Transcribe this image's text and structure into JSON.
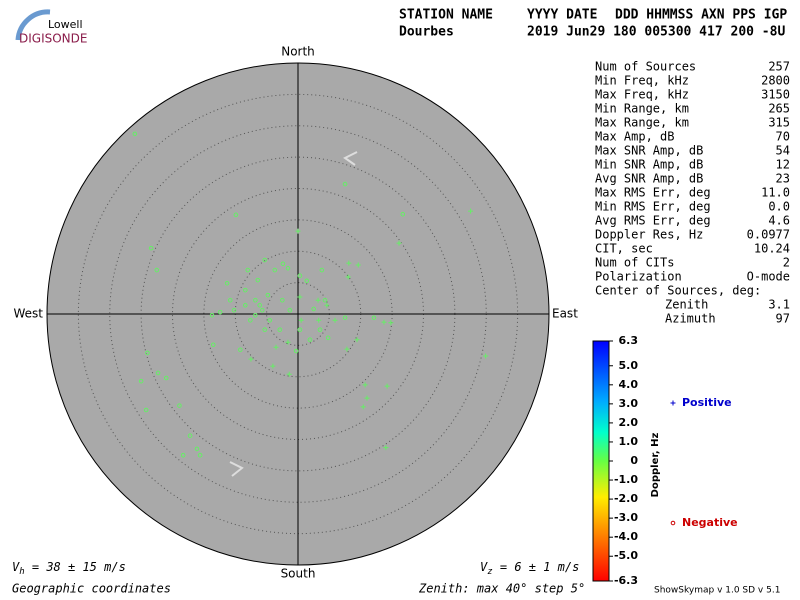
{
  "logo": {
    "line1": "Lowell",
    "line2": "DIGISONDE"
  },
  "header": {
    "columns": [
      "STATION NAME",
      "YYYY DATE",
      "DDD HHMMSS AXN PPS IGP"
    ],
    "station": "Dourbes",
    "datetime": "2019 Jun29 180 005300 417 200 -8U"
  },
  "stats": [
    [
      "Num of Sources",
      "257"
    ],
    [
      "Min Freq, kHz",
      "2800"
    ],
    [
      "Max Freq, kHz",
      "3150"
    ],
    [
      "Min Range, km",
      "265"
    ],
    [
      "Max Range, km",
      "315"
    ],
    [
      "Max Amp, dB",
      "70"
    ],
    [
      "Max SNR Amp, dB",
      "54"
    ],
    [
      "Min SNR Amp, dB",
      "12"
    ],
    [
      "Avg SNR Amp, dB",
      "23"
    ],
    [
      "Max RMS Err, deg",
      "11.0"
    ],
    [
      "Min RMS Err, deg",
      "0.0"
    ],
    [
      "Avg RMS Err, deg",
      "4.6"
    ],
    [
      "Doppler Res, Hz",
      "0.0977"
    ],
    [
      "CIT, sec",
      "10.24"
    ],
    [
      "Num of CITs",
      "2"
    ],
    [
      "Polarization",
      "O-mode"
    ]
  ],
  "center": {
    "title": "Center of Sources, deg:",
    "rows": [
      [
        "Zenith",
        "3.1"
      ],
      [
        "Azimuth",
        "97"
      ]
    ]
  },
  "footer": {
    "vh": [
      "V",
      "h",
      " = 38 ± 15 m/s"
    ],
    "vz": [
      "V",
      "z",
      " = 6 ± 1 m/s"
    ],
    "coords": "Geographic coordinates",
    "zenith": "Zenith: max 40°  step 5°",
    "version": "ShowSkymap v 1.0   SD v 5.1"
  },
  "chart_data": {
    "type": "skymap",
    "directions": {
      "north": "North",
      "south": "South",
      "east": "East",
      "west": "West"
    },
    "zlim": [
      0,
      40
    ],
    "zticks": [
      5,
      10,
      15,
      20,
      25,
      30,
      35
    ],
    "colorbar": {
      "label": "Doppler, Hz",
      "lim": [
        -6.3,
        6.3
      ],
      "ticks": [
        6.3,
        {
          "value": 5,
          "label": "5.0"
        },
        {
          "value": 4,
          "label": "4.0"
        },
        {
          "value": 3,
          "label": "3.0"
        },
        {
          "value": 2,
          "label": "2.0"
        },
        {
          "value": 1,
          "label": "1.0"
        },
        0,
        {
          "value": -1,
          "label": "-1.0"
        },
        {
          "value": -2,
          "label": "-2.0"
        },
        {
          "value": -3,
          "label": "-3.0"
        },
        {
          "value": -4,
          "label": "-4.0"
        },
        {
          "value": -5,
          "label": "-5.0"
        },
        -6.3
      ]
    },
    "series": [
      {
        "name": "Positive",
        "marker": "plus",
        "color": "#66ee66",
        "legend_color": "#0000cc",
        "x": [
          0.0,
          8.1,
          9.6,
          8.0,
          0.3,
          13.7,
          14.8,
          14.2,
          10.7,
          11.0,
          10.4,
          14.0,
          29.9,
          27.5,
          16.1,
          -1.4,
          -4.0,
          7.8,
          9.4,
          0.5,
          4.6,
          3.3,
          5.9,
          -1.6,
          -3.5,
          -7.5,
          3.2
        ],
        "y": [
          13.2,
          8.1,
          7.8,
          5.9,
          2.7,
          -1.3,
          -1.4,
          -11.5,
          -11.3,
          -13.4,
          -14.8,
          -21.3,
          -6.7,
          16.4,
          11.3,
          -9.6,
          -8.3,
          -5.6,
          -4.1,
          -1.0,
          1.4,
          -1.0,
          -1.0,
          -4.5,
          -5.3,
          -7.2,
          2.2
        ]
      },
      {
        "name": "Negative",
        "marker": "circle",
        "color": "#66ee66",
        "legend_color": "#cc0000",
        "x": [
          -26.0,
          -23.4,
          -22.5,
          -9.9,
          7.5,
          16.7,
          -24.0,
          -25.0,
          -21.0,
          -22.3,
          -24.2,
          -18.9,
          -17.2,
          -18.3,
          -15.6,
          -16.1,
          -11.3,
          -13.5,
          -13.7,
          -10.8,
          -8.4,
          -6.8,
          -5.7,
          -7.6,
          -6.4,
          -3.7,
          -1.6,
          0.3,
          1.4,
          3.8,
          4.3,
          1.9,
          -2.9,
          -9.2,
          -5.3,
          -6.8,
          -4.8,
          -2.5,
          -1.3,
          -4.5,
          -6.1,
          -8.4,
          -10.2,
          -12.4,
          0.3,
          3.5,
          4.8,
          7.5,
          12.1,
          2.5,
          -0.3,
          -5.3,
          -8.0,
          -2.4
        ],
        "y": [
          28.7,
          10.5,
          7.0,
          15.8,
          20.7,
          15.9,
          -6.2,
          -10.7,
          -10.2,
          -9.4,
          -15.3,
          -14.6,
          -19.4,
          -22.5,
          -22.5,
          -21.5,
          4.9,
          -4.9,
          -0.2,
          2.2,
          3.8,
          2.2,
          0.6,
          -1.0,
          5.4,
          7.0,
          7.3,
          6.1,
          5.3,
          7.0,
          2.2,
          -4.1,
          -2.5,
          -5.7,
          -2.5,
          -0.2,
          3.0,
          2.2,
          0.6,
          -1.0,
          1.4,
          1.4,
          0.6,
          0.3,
          -2.5,
          -2.5,
          -3.8,
          -0.6,
          -0.6,
          0.8,
          -5.9,
          8.6,
          7.0,
          8.0
        ]
      }
    ]
  }
}
